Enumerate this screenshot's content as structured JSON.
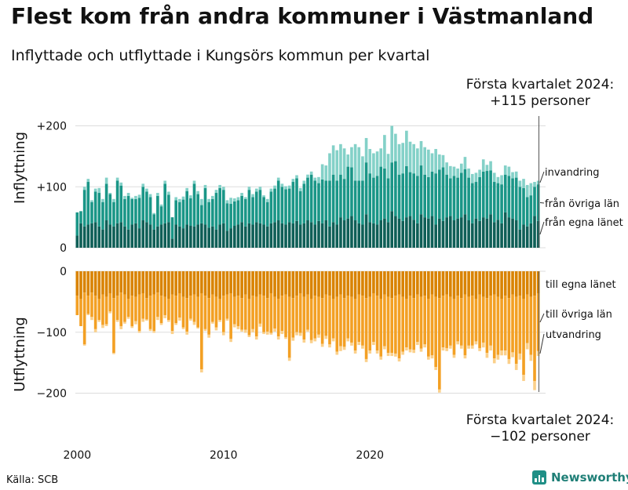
{
  "title": "Flest kom från andra kommuner i Västmanland",
  "subtitle": "Inflyttade och utflyttade i Kungsörs kommun per kvartal",
  "note_top": [
    "Första kvartalet 2024:",
    "+115 personer"
  ],
  "note_bottom": [
    "Första kvartalet 2024:",
    "−102 personer"
  ],
  "source": "Källa: SCB",
  "brand": "Newsworthy",
  "colors": {
    "in_egna_lanet": "#0f5f57",
    "in_ovriga_lan": "#1a9687",
    "in_invandring": "#84d1c8",
    "ut_egna_lanet": "#d98300",
    "ut_ovriga_lan": "#f3a024",
    "ut_utvandring": "#fbd08a",
    "grid": "#dddddd",
    "text": "#111111"
  },
  "chart_data": {
    "type": "bar",
    "stacked": true,
    "x_start_year": 2000,
    "x_start_quarter": 1,
    "x_ticks": [
      "2000",
      "2010",
      "2020"
    ],
    "grid": true,
    "panels": [
      {
        "name": "inflyttning",
        "ylabel": "Inflyttning",
        "yticks": [
          "+200",
          "+100",
          "0"
        ],
        "yticks_values": [
          200,
          100,
          0
        ],
        "ylim": [
          0,
          215
        ],
        "series": [
          {
            "name": "från egna länet",
            "values": [
              20,
              40,
              35,
              38,
              40,
              42,
              35,
              30,
              45,
              38,
              35,
              40,
              42,
              35,
              30,
              38,
              40,
              32,
              45,
              42,
              38,
              30,
              35,
              38,
              40,
              42,
              15,
              38,
              35,
              32,
              38,
              36,
              35,
              38,
              40,
              38,
              33,
              35,
              30,
              38,
              40,
              28,
              32,
              36,
              38,
              42,
              35,
              40,
              38,
              42,
              40,
              38,
              35,
              40,
              42,
              45,
              40,
              38,
              42,
              40,
              44,
              38,
              40,
              45,
              42,
              38,
              44,
              40,
              45,
              35,
              42,
              38,
              50,
              45,
              48,
              52,
              45,
              40,
              38,
              55,
              42,
              40,
              38,
              45,
              48,
              42,
              60,
              52,
              48,
              44,
              50,
              52,
              46,
              40,
              55,
              50,
              48,
              52,
              38,
              48,
              44,
              50,
              52,
              45,
              48,
              50,
              55,
              45,
              40,
              48,
              44,
              50,
              48,
              55,
              42,
              46,
              40,
              58,
              50,
              48,
              45,
              30,
              38,
              35,
              40,
              52,
              44
            ]
          },
          {
            "name": "från övriga län",
            "values": [
              38,
              20,
              60,
              70,
              35,
              50,
              55,
              45,
              60,
              50,
              40,
              70,
              60,
              45,
              55,
              42,
              40,
              50,
              55,
              50,
              45,
              25,
              50,
              30,
              65,
              45,
              35,
              40,
              40,
              47,
              55,
              45,
              70,
              50,
              30,
              60,
              42,
              45,
              60,
              60,
              55,
              45,
              40,
              40,
              40,
              43,
              45,
              55,
              45,
              50,
              55,
              45,
              40,
              52,
              55,
              65,
              60,
              58,
              55,
              68,
              70,
              55,
              65,
              70,
              78,
              72,
              62,
              72,
              65,
              75,
              78,
              72,
              70,
              68,
              85,
              80,
              65,
              70,
              72,
              85,
              80,
              75,
              80,
              88,
              82,
              72,
              80,
              90,
              72,
              78,
              84,
              72,
              76,
              78,
              80,
              70,
              68,
              73,
              84,
              80,
              88,
              70,
              62,
              73,
              67,
              73,
              74,
              70,
              66,
              60,
              72,
              75,
              78,
              72,
              66,
              60,
              64,
              62,
              68,
              66,
              70,
              70,
              60,
              48,
              46,
              48,
              60
            ]
          },
          {
            "name": "invandring",
            "values": [
              0,
              0,
              5,
              5,
              3,
              5,
              8,
              5,
              10,
              2,
              5,
              5,
              5,
              5,
              5,
              2,
              5,
              5,
              5,
              5,
              5,
              2,
              5,
              3,
              5,
              5,
              0,
              5,
              5,
              5,
              5,
              5,
              5,
              5,
              10,
              5,
              5,
              5,
              5,
              5,
              5,
              5,
              10,
              5,
              5,
              5,
              3,
              5,
              5,
              5,
              5,
              3,
              5,
              5,
              5,
              5,
              5,
              5,
              5,
              5,
              5,
              5,
              5,
              5,
              5,
              5,
              10,
              25,
              25,
              45,
              48,
              50,
              50,
              50,
              20,
              33,
              60,
              55,
              40,
              40,
              40,
              40,
              40,
              30,
              55,
              40,
              60,
              45,
              50,
              50,
              58,
              50,
              48,
              45,
              40,
              45,
              45,
              30,
              40,
              25,
              20,
              20,
              20,
              15,
              15,
              15,
              20,
              15,
              15,
              15,
              12,
              20,
              10,
              15,
              15,
              10,
              15,
              15,
              15,
              10,
              10,
              10,
              15,
              20,
              20,
              8,
              6
            ]
          }
        ]
      },
      {
        "name": "utflyttning",
        "ylabel": "Utflyttning",
        "yticks": [
          "0",
          "−100",
          "−200"
        ],
        "yticks_values": [
          0,
          -100,
          -200
        ],
        "ylim": [
          -215,
          0
        ],
        "series": [
          {
            "name": "till egna länet",
            "values": [
              -40,
              -45,
              -35,
              -40,
              -35,
              -40,
              -45,
              -38,
              -42,
              -36,
              -44,
              -40,
              -35,
              -38,
              -45,
              -40,
              -42,
              -38,
              -36,
              -44,
              -40,
              -38,
              -35,
              -40,
              -42,
              -45,
              -38,
              -40,
              -36,
              -42,
              -44,
              -40,
              -38,
              -42,
              -36,
              -40,
              -44,
              -38,
              -42,
              -45,
              -40,
              -38,
              -36,
              -42,
              -40,
              -44,
              -38,
              -45,
              -40,
              -42,
              -38,
              -40,
              -44,
              -36,
              -42,
              -45,
              -40,
              -38,
              -42,
              -44,
              -40,
              -36,
              -42,
              -38,
              -45,
              -40,
              -42,
              -44,
              -38,
              -40,
              -45,
              -42,
              -38,
              -44,
              -40,
              -42,
              -45,
              -38,
              -40,
              -44,
              -42,
              -36,
              -40,
              -45,
              -38,
              -42,
              -44,
              -40,
              -38,
              -42,
              -45,
              -40,
              -44,
              -38,
              -42,
              -40,
              -45,
              -38,
              -42,
              -44,
              -40,
              -38,
              -42,
              -45,
              -40,
              -44,
              -38,
              -42,
              -40,
              -45,
              -38,
              -42,
              -44,
              -40,
              -38,
              -42,
              -45,
              -40,
              -44,
              -38,
              -42,
              -40,
              -45,
              -38,
              -42,
              -40,
              -36
            ]
          },
          {
            "name": "till övriga län",
            "values": [
              -32,
              -45,
              -85,
              -30,
              -40,
              -55,
              -35,
              -50,
              -45,
              -30,
              -90,
              -40,
              -55,
              -45,
              -30,
              -50,
              -40,
              -60,
              -42,
              -35,
              -55,
              -60,
              -40,
              -45,
              -30,
              -35,
              -60,
              -45,
              -40,
              -50,
              -55,
              -38,
              -45,
              -50,
              -125,
              -55,
              -60,
              -45,
              -50,
              -35,
              -60,
              -40,
              -75,
              -45,
              -50,
              -52,
              -58,
              -60,
              -55,
              -65,
              -48,
              -60,
              -55,
              -65,
              -52,
              -62,
              -58,
              -70,
              -100,
              -65,
              -60,
              -65,
              -70,
              -58,
              -68,
              -70,
              -62,
              -75,
              -68,
              -80,
              -65,
              -90,
              -85,
              -80,
              -70,
              -75,
              -85,
              -78,
              -82,
              -100,
              -88,
              -80,
              -90,
              -95,
              -85,
              -92,
              -90,
              -95,
              -105,
              -90,
              -80,
              -88,
              -85,
              -78,
              -85,
              -80,
              -95,
              -100,
              -115,
              -150,
              -85,
              -88,
              -80,
              -92,
              -75,
              -78,
              -100,
              -80,
              -82,
              -70,
              -88,
              -75,
              -90,
              -82,
              -105,
              -95,
              -85,
              -90,
              -100,
              -95,
              -110,
              -95,
              -125,
              -80,
              -95,
              -140,
              -95
            ]
          },
          {
            "name": "utvandring",
            "values": [
              0,
              0,
              -2,
              -2,
              -5,
              -5,
              -3,
              -5,
              -3,
              -3,
              -2,
              -3,
              -5,
              -3,
              -3,
              -3,
              -5,
              -3,
              -5,
              -2,
              -3,
              -3,
              -5,
              -3,
              -5,
              -3,
              -5,
              -3,
              -5,
              -3,
              -5,
              -3,
              -5,
              -2,
              -5,
              -3,
              -5,
              -3,
              -5,
              -3,
              -5,
              -3,
              -5,
              -5,
              -5,
              -3,
              -5,
              -3,
              -5,
              -5,
              -5,
              -3,
              -5,
              -3,
              -5,
              -5,
              -5,
              -3,
              -5,
              -5,
              -5,
              -5,
              -5,
              -3,
              -5,
              -5,
              -5,
              -5,
              -5,
              -5,
              -5,
              -5,
              -8,
              -5,
              -5,
              -5,
              -5,
              -5,
              -5,
              -5,
              -5,
              -5,
              -5,
              -5,
              -5,
              -5,
              -5,
              -5,
              -5,
              -5,
              -5,
              -5,
              -5,
              -5,
              -5,
              -5,
              -5,
              -5,
              -5,
              -5,
              -5,
              -5,
              -5,
              -5,
              -5,
              -5,
              -5,
              -5,
              -5,
              -5,
              -5,
              -8,
              -8,
              -8,
              -8,
              -8,
              -8,
              -8,
              -8,
              -8,
              -10,
              -10,
              -10,
              -10,
              -10,
              -15,
              -8
            ]
          }
        ]
      }
    ],
    "notes": [
      "Första kvartalet 2024:",
      "+115 personer",
      "Första kvartalet 2024:",
      "−102 personer"
    ]
  }
}
